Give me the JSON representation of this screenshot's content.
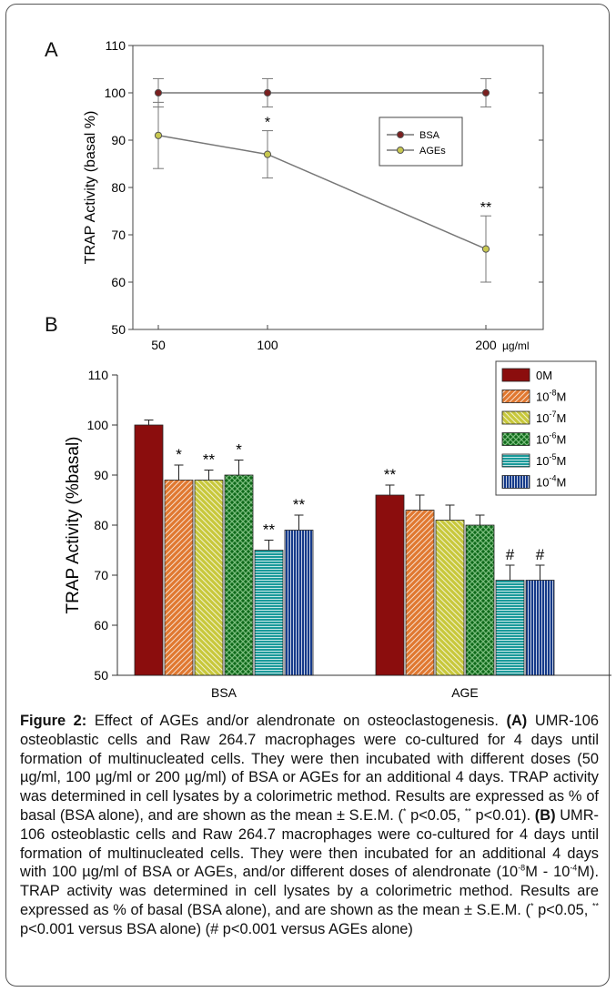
{
  "chart_data": [
    {
      "panel": "A",
      "type": "line",
      "ylabel": "TRAP Activity (basal %)",
      "x_unit": "µg/ml",
      "x": [
        50,
        100,
        200
      ],
      "xticks": [
        "50",
        "100",
        "200"
      ],
      "ylim": [
        50,
        110
      ],
      "yticks": [
        50,
        60,
        70,
        80,
        90,
        100,
        110
      ],
      "legend_position": "right-center",
      "grid": false,
      "series": [
        {
          "name": "BSA",
          "values": [
            100,
            100,
            100
          ],
          "errors": [
            3,
            3,
            3
          ],
          "color": "#7a1f1f",
          "marks": [
            "",
            "",
            ""
          ]
        },
        {
          "name": "AGEs",
          "values": [
            91,
            87,
            67
          ],
          "errors": [
            7,
            5,
            7
          ],
          "color": "#c8c850",
          "marks": [
            "",
            "*",
            "**"
          ]
        }
      ]
    },
    {
      "panel": "B",
      "type": "bar",
      "ylabel": "TRAP Activity (%basal)",
      "categories": [
        "BSA",
        "AGE"
      ],
      "ylim": [
        50,
        110
      ],
      "yticks": [
        50,
        60,
        70,
        80,
        90,
        100,
        110
      ],
      "legend_position": "top-right",
      "grid": false,
      "series": [
        {
          "legend_base": "0M",
          "legend_exp": "",
          "legend_unit": "",
          "values": [
            100,
            86
          ],
          "errors": [
            1,
            2
          ],
          "marks": [
            "",
            "**"
          ],
          "color": "#8b0d0d",
          "pattern": "solid"
        },
        {
          "legend_base": "10",
          "legend_exp": "-8",
          "legend_unit": "M",
          "values": [
            89,
            83
          ],
          "errors": [
            3,
            3
          ],
          "marks": [
            "*",
            ""
          ],
          "color": "#e07830",
          "pattern": "diag"
        },
        {
          "legend_base": "10",
          "legend_exp": "-7",
          "legend_unit": "M",
          "values": [
            89,
            81
          ],
          "errors": [
            2,
            3
          ],
          "marks": [
            "**",
            ""
          ],
          "color": "#c8c83c",
          "pattern": "diag2"
        },
        {
          "legend_base": "10",
          "legend_exp": "-6",
          "legend_unit": "M",
          "values": [
            90,
            80
          ],
          "errors": [
            3,
            2
          ],
          "marks": [
            "*",
            ""
          ],
          "color": "#0f6a1a",
          "pattern": "check"
        },
        {
          "legend_base": "10",
          "legend_exp": "-5",
          "legend_unit": "M",
          "values": [
            75,
            69
          ],
          "errors": [
            2,
            3
          ],
          "marks": [
            "**",
            "#"
          ],
          "color": "#1a9a9a",
          "pattern": "hline"
        },
        {
          "legend_base": "10",
          "legend_exp": "-4",
          "legend_unit": "M",
          "values": [
            79,
            69
          ],
          "errors": [
            3,
            3
          ],
          "marks": [
            "**",
            "#"
          ],
          "color": "#153a8a",
          "pattern": "vline"
        }
      ]
    }
  ],
  "panels": {
    "a": "A",
    "b": "B"
  },
  "caption": {
    "title": "Figure 2:",
    "t1": " Effect of AGEs and/or alendronate on osteoclastogenesis. ",
    "a_label": "(A)",
    "t2": " UMR-106 osteoblastic cells and Raw 264.7 macrophages were co-cultured for 4 days until formation of multinucleated cells. They were then incubated with different doses (50 µg/ml, 100 µg/ml or 200 µg/ml) of BSA or AGEs for an additional 4 days. TRAP activity was determined in cell lysates by a colorimetric method. Results are expressed as % of basal (BSA alone), and are shown as the mean ± S.E.M. (",
    "star1": "*",
    "t3": " p<0.05, ",
    "star2": "**",
    "t4": " p<0.01). ",
    "b_label": "(B)",
    "t5": " UMR-106 osteoblastic cells and Raw 264.7 macrophages were co-cultured for 4 days until formation of multinucleated cells. They were then incubated for an additional 4 days with 100 µg/ml of BSA or AGEs, and/or different doses of alendronate (10",
    "exp1": "-8",
    "t6": "M - 10",
    "exp2": "-4",
    "t7": "M). TRAP activity was determined in cell lysates by a colorimetric method. Results are expressed as % of basal (BSA alone), and are shown as the mean ± S.E.M. (",
    "star3": "*",
    "t8": " p<0.05, ",
    "star4": "**",
    "t9": " p<0.001 versus BSA alone) (# p<0.001 versus AGEs alone)"
  }
}
